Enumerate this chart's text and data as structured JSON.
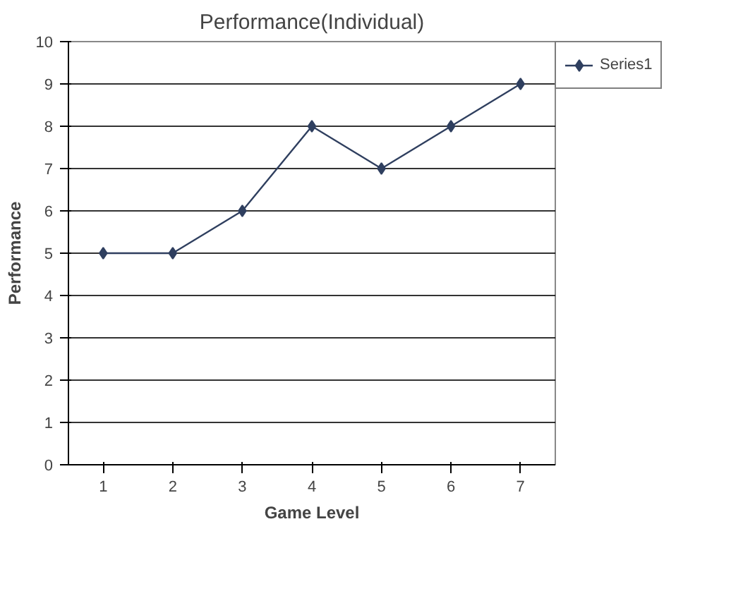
{
  "chart_data": {
    "type": "line",
    "title": "Performance(Individual)",
    "xlabel": "Game Level",
    "ylabel": "Performance",
    "categories": [
      "1",
      "2",
      "3",
      "4",
      "5",
      "6",
      "7"
    ],
    "series": [
      {
        "name": "Series1",
        "color": "#2f3f5f",
        "values": [
          5,
          5,
          6,
          8,
          7,
          8,
          9
        ]
      }
    ],
    "ylim": [
      0,
      10
    ],
    "yticks": [
      0,
      1,
      2,
      3,
      4,
      5,
      6,
      7,
      8,
      9,
      10
    ],
    "grid": "y",
    "legend": "right",
    "marker": "diamond",
    "line_style": "solid"
  }
}
